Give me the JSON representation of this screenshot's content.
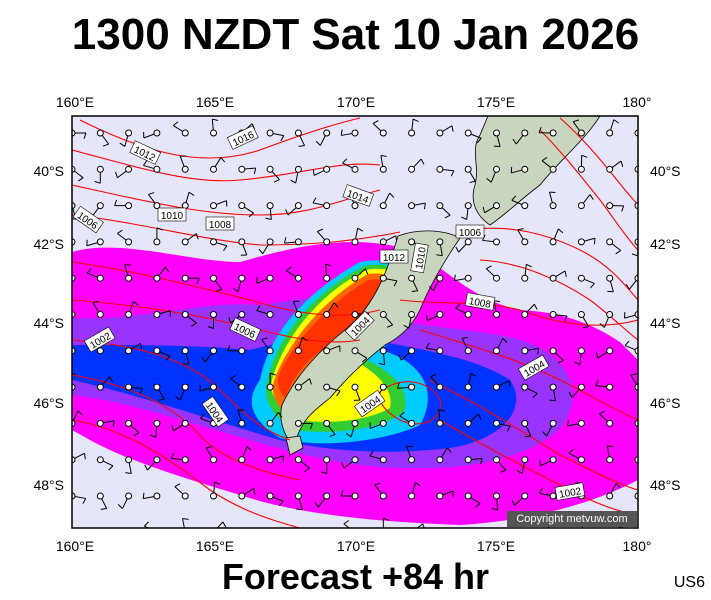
{
  "title": "1300 NZDT Sat 10 Jan 2026",
  "footer": "Forecast +84 hr",
  "model_code": "US6",
  "copyright": "Copyright metvuw.com",
  "lon_labels": [
    "160°E",
    "165°E",
    "170°E",
    "175°E",
    "180°"
  ],
  "lat_labels": [
    "40°S",
    "42°S",
    "44°S",
    "46°S",
    "48°S"
  ],
  "isobar_labels": [
    "1016",
    "1012",
    "1014",
    "1010",
    "1008",
    "1006",
    "1012",
    "1010",
    "1006",
    "1006",
    "1002",
    "1008",
    "1004",
    "1004",
    "1004",
    "1004",
    "1002"
  ],
  "colors": {
    "background": "#e6e6fa",
    "isobar": "#ff0000",
    "land": "#c9d6bf",
    "precip_light": "#ff00ff",
    "precip_mid": "#0000ff",
    "precip_heavy": "#ff3300"
  }
}
